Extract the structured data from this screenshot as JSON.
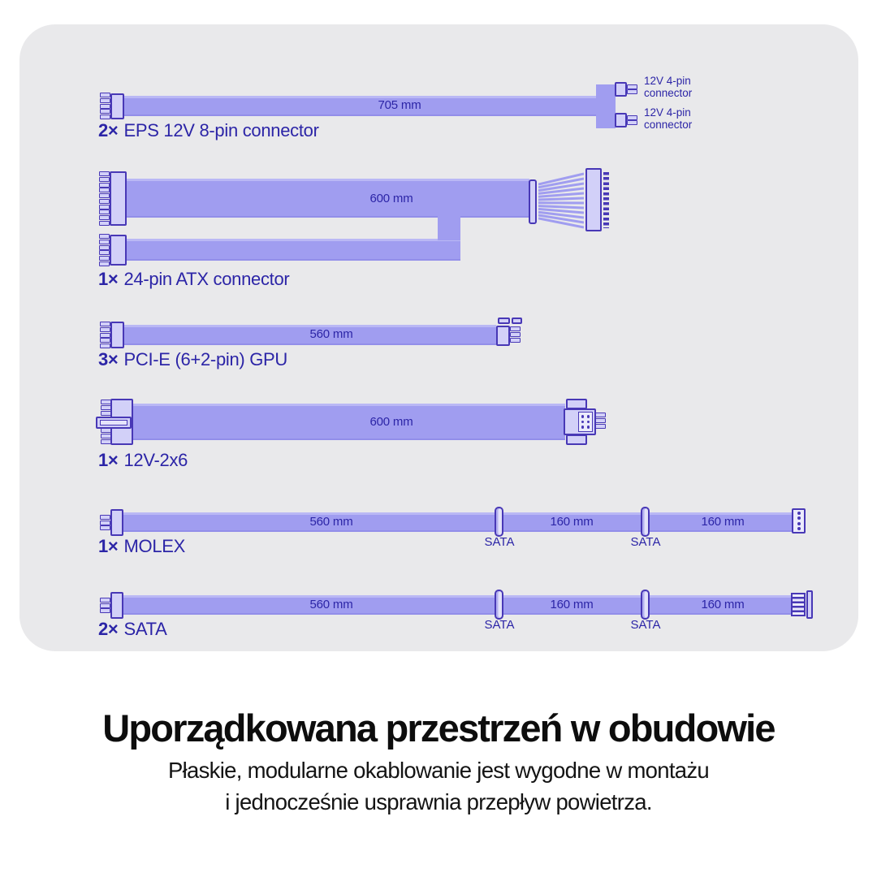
{
  "colors": {
    "ribbon": "#a09df0",
    "ribbon_hi": "#bab8f5",
    "outline": "#4838b6",
    "plug_fill": "#d2d0f8",
    "ink": "#2c25a7",
    "panel_bg": "#e9e9eb",
    "title_ink": "#0d0d0d"
  },
  "rows": [
    {
      "qty": "2×",
      "name": "EPS 12V 8-pin connector",
      "length": "705 mm",
      "branch1": "12V 4-pin\nconnector",
      "branch2": "12V 4-pin\nconnector"
    },
    {
      "qty": "1×",
      "name": "24-pin ATX connector",
      "length": "600 mm"
    },
    {
      "qty": "3×",
      "name": "PCI-E (6+2-pin) GPU",
      "length": "560 mm"
    },
    {
      "qty": "1×",
      "name": "12V-2x6",
      "length": "600 mm"
    },
    {
      "qty": "1×",
      "name": "MOLEX",
      "length": "560 mm",
      "seg2": "160 mm",
      "seg3": "160 mm",
      "tap1": "SATA",
      "tap2": "SATA"
    },
    {
      "qty": "2×",
      "name": "SATA",
      "length": "560 mm",
      "seg2": "160 mm",
      "seg3": "160 mm",
      "tap1": "SATA",
      "tap2": "SATA"
    }
  ],
  "caption": {
    "title": "Uporządkowana przestrzeń w obudowie",
    "line1": "Płaskie, modularne okablowanie jest wygodne w montażu",
    "line2": "i jednocześnie usprawnia przepływ powietrza."
  }
}
